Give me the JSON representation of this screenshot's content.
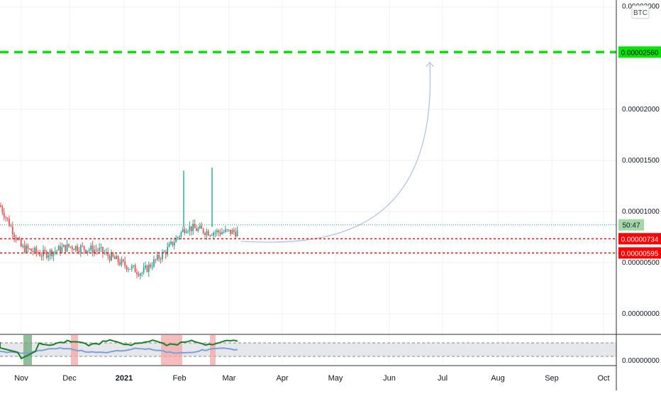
{
  "currency_badge": "BTC",
  "colors": {
    "up": "#26a69a",
    "down": "#ef5350",
    "target_line": "#00e600",
    "level_line": "#ff0000",
    "projection": "#b7c3e6",
    "osc_main": "#1b7f2b",
    "osc_signal": "#7f9fd9",
    "grid": "#eef0f3"
  },
  "chart_data": {
    "type": "candlestick",
    "title": "",
    "price_ticks": [
      "0.00003000",
      "0.00002000",
      "0.00001500",
      "0.00001000",
      "0.00000500",
      "0.00000000"
    ],
    "x_tick_labels": [
      "Nov",
      "Dec",
      "2021",
      "Feb",
      "Mar",
      "Apr",
      "May",
      "Jun",
      "Jul",
      "Aug",
      "Sep",
      "Oct"
    ],
    "current_price_label": "50:47",
    "current_price": 8.7e-06,
    "horizontal_levels": [
      {
        "name": "target",
        "value": 2.56e-05,
        "label": "0.00002560",
        "style": "dashed"
      },
      {
        "name": "resistance",
        "value": 7.34e-06,
        "label": "0.00000734",
        "style": "dotted"
      },
      {
        "name": "support",
        "value": 5.95e-06,
        "label": "0.00000595",
        "style": "dotted"
      }
    ],
    "price_series": [
      {
        "month": "Oct",
        "value": 1.06e-05
      },
      {
        "month": "Nov",
        "value": 6.5e-06
      },
      {
        "month": "Nov",
        "value": 5.8e-06
      },
      {
        "month": "Dec",
        "value": 6.6e-06
      },
      {
        "month": "Dec",
        "value": 6.2e-06
      },
      {
        "month": "2021",
        "value": 4.8e-06
      },
      {
        "month": "2021",
        "value": 4e-06
      },
      {
        "month": "Feb",
        "value": 6.2e-06
      },
      {
        "month": "Feb",
        "value": 8.5e-06
      },
      {
        "month": "Feb",
        "value": 8e-06
      },
      {
        "month": "Mar",
        "value": 8e-06
      }
    ],
    "spikes": [
      {
        "month": "Feb",
        "high": 1.4e-05
      },
      {
        "month": "Feb",
        "high": 1.43e-05
      }
    ],
    "projection": {
      "from_month": "Mar",
      "to_month": "Jun",
      "from_value": 7.1e-06,
      "to_value": 2.46e-05
    },
    "oscillator": {
      "zones": [
        "overbought",
        "oversold"
      ],
      "highlight_months": [
        "Nov",
        "Dec",
        "Feb",
        "Feb"
      ]
    }
  }
}
